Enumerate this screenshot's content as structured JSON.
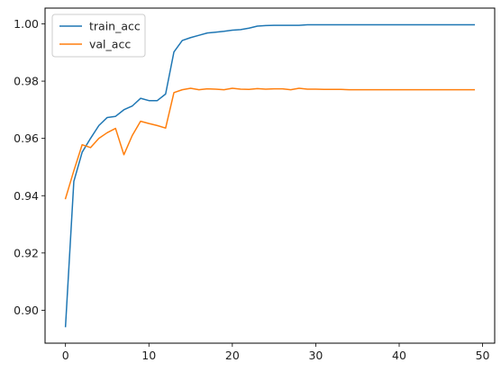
{
  "chart_data": {
    "type": "line",
    "title": "",
    "xlabel": "",
    "ylabel": "",
    "xlim": [
      -2.45,
      51.45
    ],
    "ylim": [
      0.8885,
      1.0055
    ],
    "x_ticks": [
      0,
      10,
      20,
      30,
      40,
      50
    ],
    "y_ticks": [
      0.9,
      0.92,
      0.94,
      0.96,
      0.98,
      1.0
    ],
    "y_tick_labels": [
      "0.90",
      "0.92",
      "0.94",
      "0.96",
      "0.98",
      "1.00"
    ],
    "grid": false,
    "legend_position": "upper-left",
    "x": [
      0,
      1,
      2,
      3,
      4,
      5,
      6,
      7,
      8,
      9,
      10,
      11,
      12,
      13,
      14,
      15,
      16,
      17,
      18,
      19,
      20,
      21,
      22,
      23,
      24,
      25,
      26,
      27,
      28,
      29,
      30,
      31,
      32,
      33,
      34,
      35,
      36,
      37,
      38,
      39,
      40,
      41,
      42,
      43,
      44,
      45,
      46,
      47,
      48,
      49
    ],
    "series": [
      {
        "name": "train_acc",
        "color": "#1f77b4",
        "values": [
          0.8943,
          0.945,
          0.9552,
          0.96,
          0.9645,
          0.9673,
          0.9677,
          0.97,
          0.9713,
          0.974,
          0.9732,
          0.9732,
          0.9755,
          0.9902,
          0.9942,
          0.9952,
          0.996,
          0.9968,
          0.9971,
          0.9974,
          0.9978,
          0.998,
          0.9985,
          0.9992,
          0.9994,
          0.9995,
          0.9995,
          0.9995,
          0.9995,
          0.9997,
          0.9997,
          0.9997,
          0.9997,
          0.9997,
          0.9997,
          0.9997,
          0.9997,
          0.9997,
          0.9997,
          0.9997,
          0.9997,
          0.9997,
          0.9997,
          0.9997,
          0.9997,
          0.9997,
          0.9997,
          0.9997,
          0.9997,
          0.9997
        ]
      },
      {
        "name": "val_acc",
        "color": "#ff7f0e",
        "values": [
          0.939,
          0.9487,
          0.9578,
          0.9568,
          0.96,
          0.962,
          0.9635,
          0.9543,
          0.961,
          0.966,
          0.9652,
          0.9645,
          0.9636,
          0.976,
          0.977,
          0.9775,
          0.977,
          0.9773,
          0.9772,
          0.977,
          0.9775,
          0.9772,
          0.9771,
          0.9774,
          0.9772,
          0.9773,
          0.9773,
          0.977,
          0.9775,
          0.9772,
          0.9772,
          0.9771,
          0.9771,
          0.9771,
          0.977,
          0.977,
          0.977,
          0.977,
          0.977,
          0.977,
          0.977,
          0.977,
          0.977,
          0.977,
          0.977,
          0.977,
          0.977,
          0.977,
          0.977,
          0.977
        ]
      }
    ]
  }
}
